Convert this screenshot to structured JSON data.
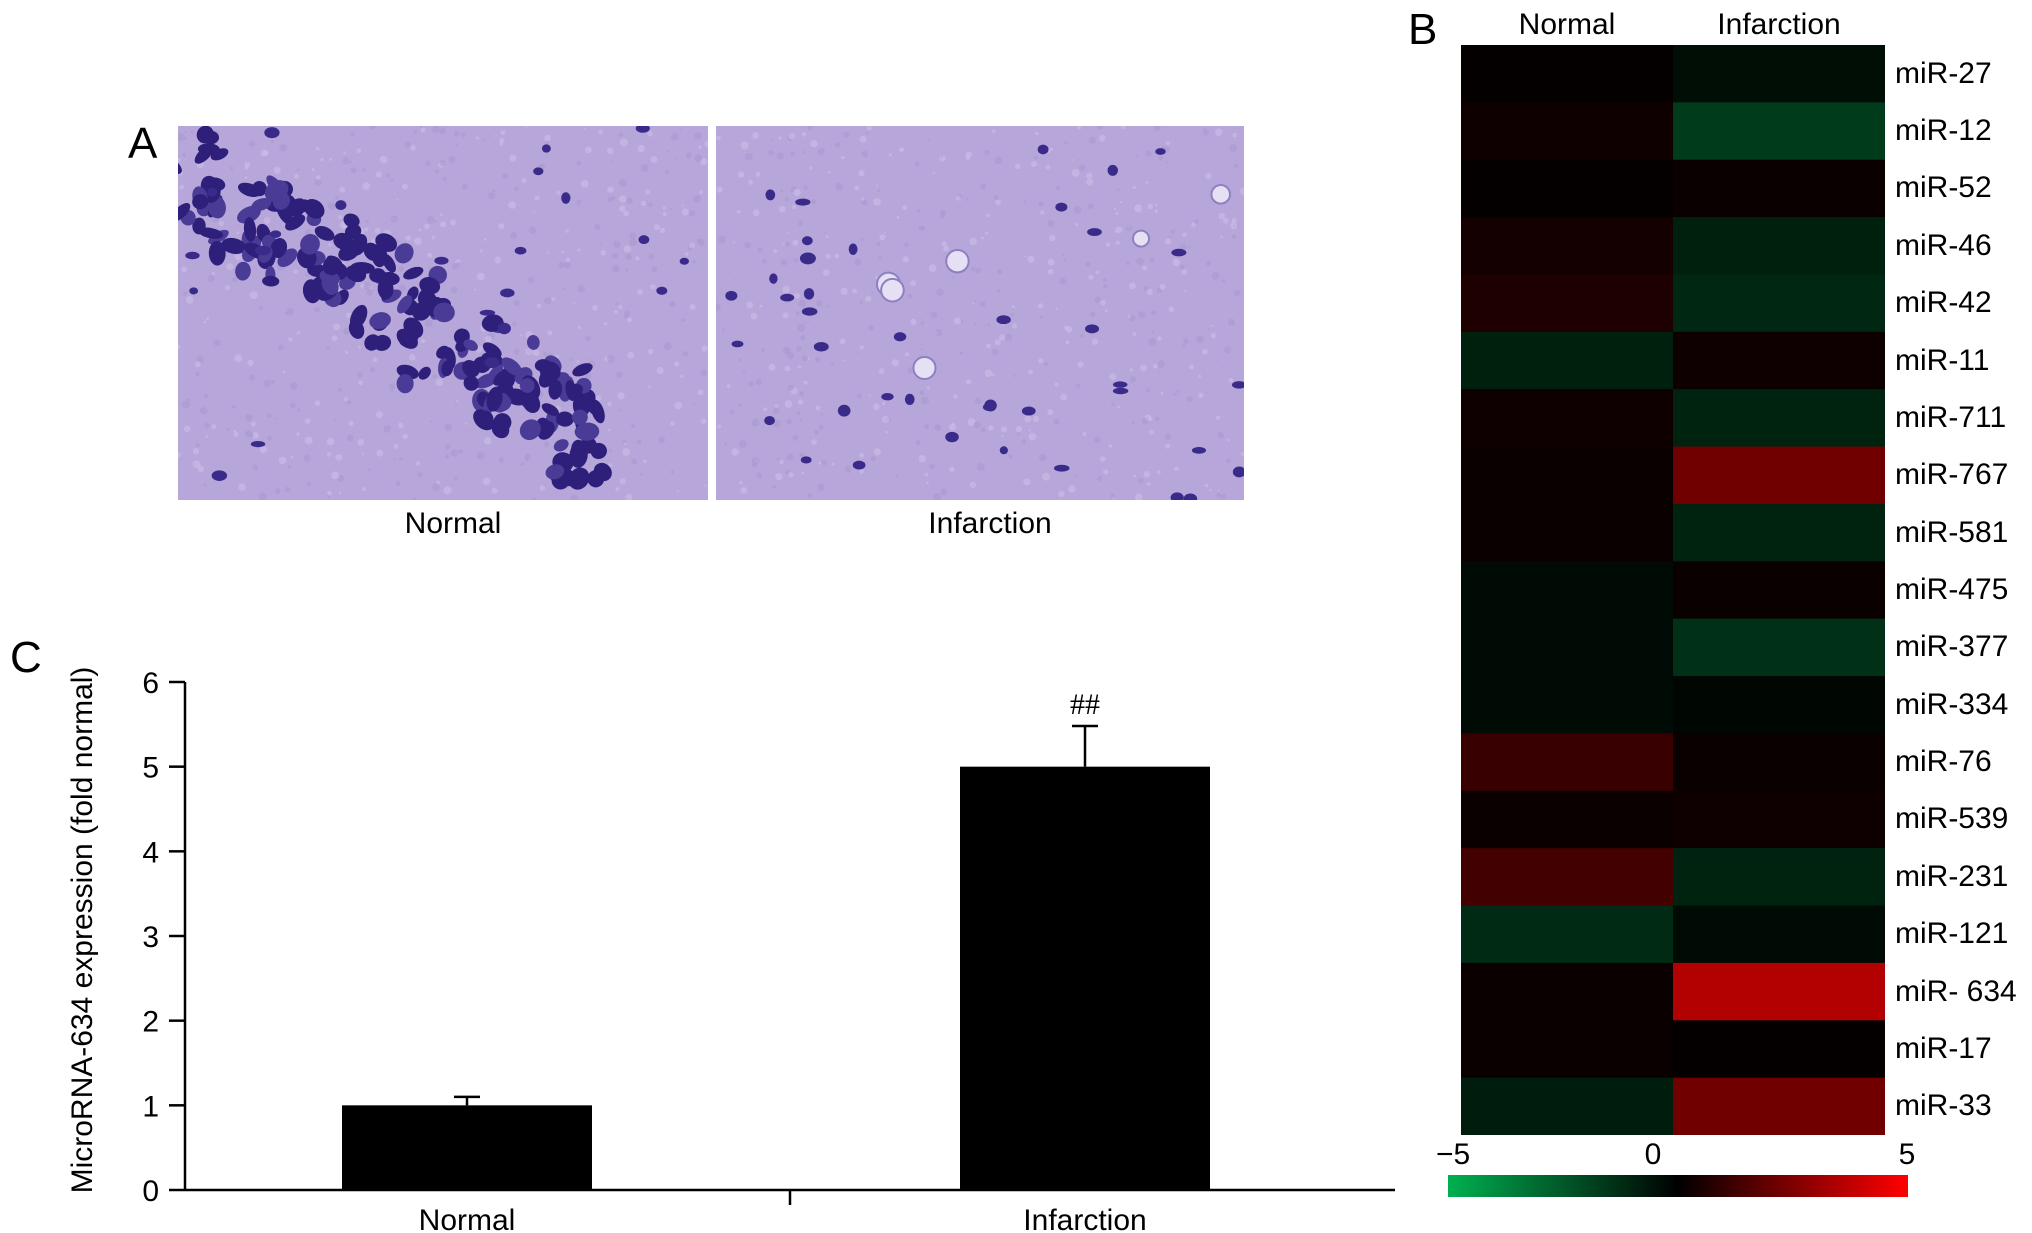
{
  "panel_a": {
    "letter": "A",
    "captions": [
      "Normal",
      "Infarction"
    ]
  },
  "panel_b": {
    "letter": "B",
    "column_headers": [
      "Normal",
      "Infarction"
    ],
    "colorbar_ticks": [
      "−5",
      "0",
      "5"
    ],
    "colorbar_range": [
      -5,
      5
    ],
    "colors": {
      "low": "#00b050",
      "mid": "#000000",
      "high": "#ff0000"
    }
  },
  "panel_c": {
    "letter": "C",
    "annotation": "##"
  },
  "chart_data": [
    {
      "type": "bar",
      "categories": [
        "Normal",
        "Infarction"
      ],
      "values": [
        1.0,
        5.0
      ],
      "error": [
        0.1,
        0.48
      ],
      "annotations": [
        "",
        "##"
      ],
      "ylabel": "MicroRNA-634 expression (fold normal)",
      "xlabel": "",
      "ylim": [
        0,
        6
      ],
      "yticks": [
        "0",
        "1",
        "2",
        "3",
        "4",
        "5",
        "6"
      ],
      "grid": false,
      "bar_color": "#000000"
    },
    {
      "type": "heatmap",
      "columns": [
        "Normal",
        "Infarction"
      ],
      "rows": [
        "miR-27",
        "miR-12",
        "miR-52",
        "miR-46",
        "miR-42",
        "miR-11",
        "miR-711",
        "miR-767",
        "miR-581",
        "miR-475",
        "miR-377",
        "miR-334",
        "miR-76",
        "miR-539",
        "miR-231",
        "miR-121",
        "miR- 634",
        "miR-17",
        "miR-33"
      ],
      "values": [
        [
          0.1,
          -0.4
        ],
        [
          0.3,
          -1.7
        ],
        [
          0.1,
          0.2
        ],
        [
          0.4,
          -0.9
        ],
        [
          0.6,
          -1.1
        ],
        [
          -0.9,
          0.3
        ],
        [
          0.3,
          -1.0
        ],
        [
          0.2,
          2.2
        ],
        [
          0.2,
          -1.0
        ],
        [
          -0.3,
          0.2
        ],
        [
          -0.3,
          -1.4
        ],
        [
          -0.3,
          -0.2
        ],
        [
          1.1,
          0.2
        ],
        [
          0.2,
          0.3
        ],
        [
          1.3,
          -1.0
        ],
        [
          -1.2,
          -0.3
        ],
        [
          0.2,
          3.5
        ],
        [
          0.2,
          0.1
        ],
        [
          -0.8,
          2.2
        ]
      ],
      "colorbar_range": [
        -5,
        5
      ]
    }
  ]
}
